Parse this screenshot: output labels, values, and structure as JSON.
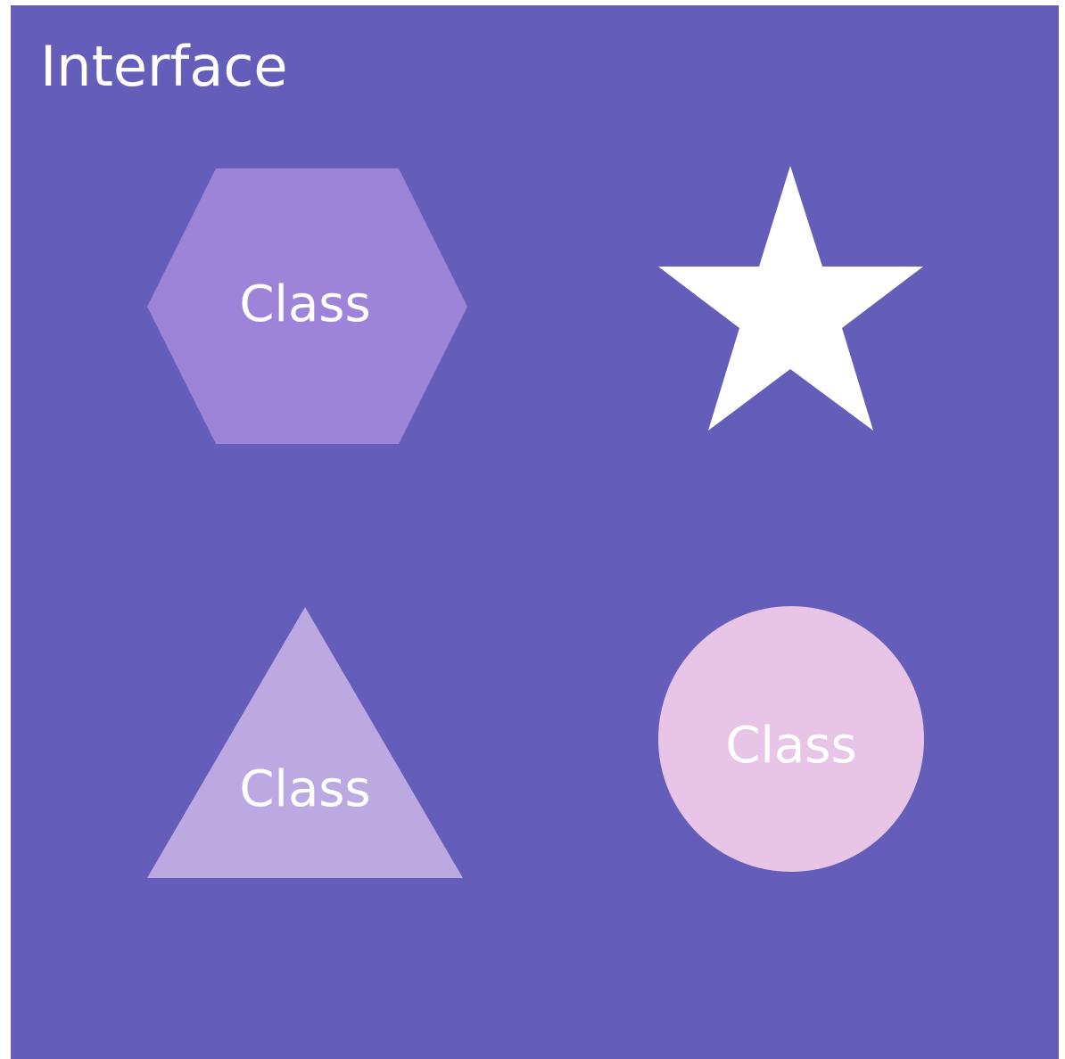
{
  "interface": {
    "title": "Interface",
    "color": "#645DBA"
  },
  "shapes": {
    "hexagon": {
      "label": "Class",
      "color": "#9E84D8"
    },
    "star": {
      "label": "",
      "color": "#FFFFFF"
    },
    "triangle": {
      "label": "Class",
      "color": "#BDA9E1"
    },
    "circle": {
      "label": "Class",
      "color": "#E8C5E6"
    }
  }
}
